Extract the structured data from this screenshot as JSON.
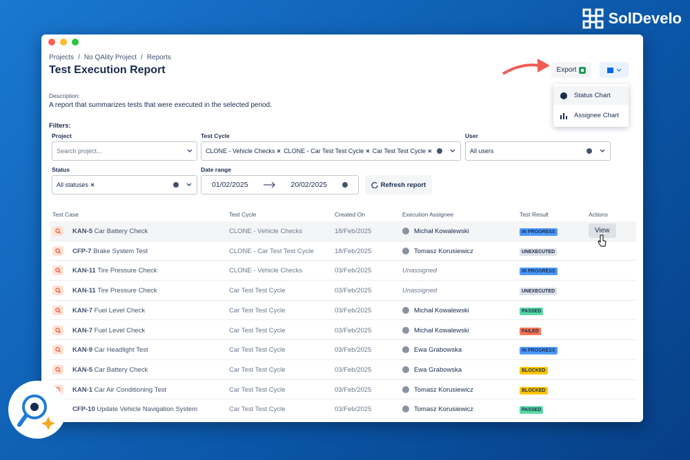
{
  "brand": "SolDevelo",
  "breadcrumbs": [
    "Projects",
    "No QAlity Project",
    "Reports"
  ],
  "breadcrumb_separator": "/",
  "title": "Test Execution Report",
  "export_button": "Export",
  "menu": [
    "Status Chart",
    "Assignee Chart"
  ],
  "description_label": "Description:",
  "description": "A report that summarizes tests that were executed in the selected period.",
  "filters_label": "Filters:",
  "filters": {
    "project": {
      "label": "Project",
      "placeholder": "Search project..."
    },
    "test_cycle": {
      "label": "Test Cycle",
      "chips": [
        "CLONE - Vehicle Checks",
        "CLONE - Car Test Test Cycle",
        "Car Test Test Cycle"
      ]
    },
    "user": {
      "label": "User",
      "value": "All users"
    },
    "status": {
      "label": "Status",
      "chips": [
        "All statuses"
      ]
    },
    "date_range": {
      "label": "Date range",
      "from": "01/02/2025",
      "to": "20/02/2025"
    },
    "refresh_button": "Refresh report"
  },
  "table": {
    "headers": [
      "Test Case",
      "Test Cycle",
      "Created On",
      "Execution Assignee",
      "Test Result",
      "Actions"
    ],
    "view_button": "View",
    "rows": [
      {
        "key": "KAN-5",
        "name": "Car Battery Check",
        "cycle": "CLONE - Vehicle Checks",
        "created": "18/Feb/2025",
        "assignee": "Michał Kowalewski",
        "result": "IN PROGRESS",
        "result_color": "#4c9aff"
      },
      {
        "key": "CFP-7",
        "name": "Brake System Test",
        "cycle": "CLONE - Car Test Test Cycle",
        "created": "18/Feb/2025",
        "assignee": "Tomasz Korusiewicz",
        "result": "UNEXECUTED",
        "result_color": "#dfe1e6"
      },
      {
        "key": "KAN-11",
        "name": "Tire Pressure Check",
        "cycle": "CLONE - Vehicle Checks",
        "created": "03/Feb/2025",
        "assignee": "Unassigned",
        "unassigned": true,
        "result": "IN PROGRESS",
        "result_color": "#4c9aff"
      },
      {
        "key": "KAN-11",
        "name": "Tire Pressure Check",
        "cycle": "Car Test Test Cycle",
        "created": "03/Feb/2025",
        "assignee": "Unassigned",
        "unassigned": true,
        "result": "UNEXECUTED",
        "result_color": "#dfe1e6"
      },
      {
        "key": "KAN-7",
        "name": "Fuel Level Check",
        "cycle": "Car Test Test Cycle",
        "created": "03/Feb/2025",
        "assignee": "Michał Kowalewski",
        "result": "PASSED",
        "result_color": "#57d9a3"
      },
      {
        "key": "KAN-7",
        "name": "Fuel Level Check",
        "cycle": "Car Test Test Cycle",
        "created": "03/Feb/2025",
        "assignee": "Michał Kowalewski",
        "result": "FAILED",
        "result_color": "#ff7452"
      },
      {
        "key": "KAN-9",
        "name": "Car Headlight Test",
        "cycle": "Car Test Test Cycle",
        "created": "03/Feb/2025",
        "assignee": "Ewa Grabowska",
        "result": "IN PROGRESS",
        "result_color": "#4c9aff"
      },
      {
        "key": "KAN-5",
        "name": "Car Battery Check",
        "cycle": "Car Test Test Cycle",
        "created": "03/Feb/2025",
        "assignee": "Ewa Grabowska",
        "result": "BLOCKED",
        "result_color": "#ffc400"
      },
      {
        "key": "KAN-1",
        "name": "Car Air Conditioning Test",
        "cycle": "Car Test Test Cycle",
        "created": "03/Feb/2025",
        "assignee": "Tomasz Korusiewicz",
        "result": "BLOCKED",
        "result_color": "#ffc400"
      },
      {
        "key": "CFP-10",
        "name": "Update Vehicle Navigation System",
        "cycle": "Car Test Test Cycle",
        "created": "03/Feb/2025",
        "assignee": "Tomasz Korusiewicz",
        "result": "PASSED",
        "result_color": "#57d9a3"
      }
    ]
  }
}
